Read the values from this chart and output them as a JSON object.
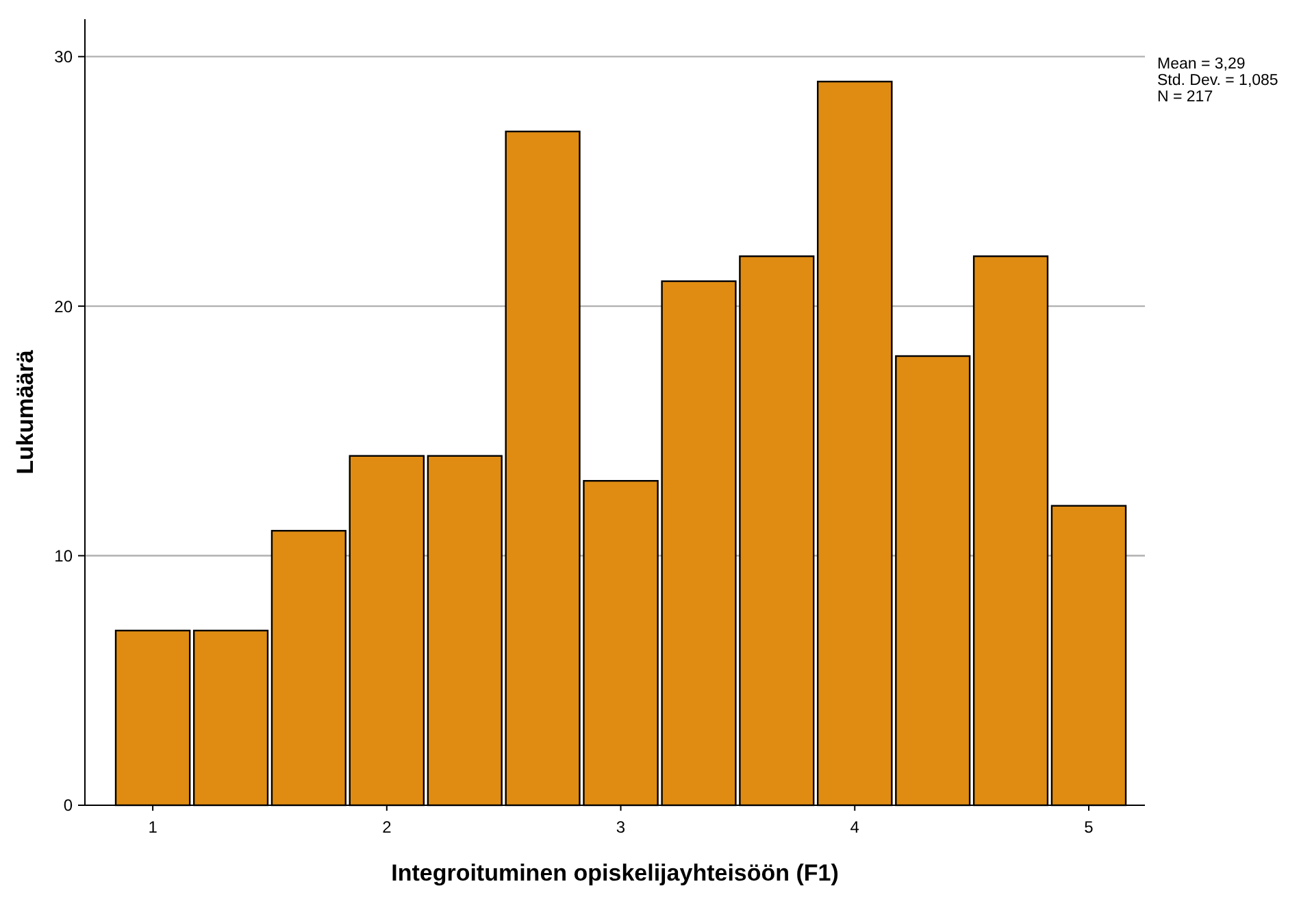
{
  "chart_data": {
    "type": "histogram",
    "xlabel": "Integroituminen opiskelijayhteisöön (F1)",
    "ylabel": "Lukumäärä",
    "bins": [
      0.833,
      1.167,
      1.5,
      1.833,
      2.167,
      2.5,
      2.833,
      3.167,
      3.5,
      3.833,
      4.167,
      4.5,
      4.833,
      5.167
    ],
    "values": [
      7,
      7,
      11,
      14,
      14,
      27,
      13,
      21,
      22,
      29,
      18,
      22,
      12
    ],
    "color": "#e08c12",
    "xlim": [
      0.71,
      5.24
    ],
    "xticks": [
      1,
      2,
      3,
      4,
      5
    ],
    "ylim": [
      0,
      31.5
    ],
    "yticks": [
      0,
      10,
      20,
      30
    ],
    "grid": "y",
    "annotations": [
      "Mean = 3,29",
      "Std. Dev. = 1,085",
      "N = 217"
    ]
  }
}
